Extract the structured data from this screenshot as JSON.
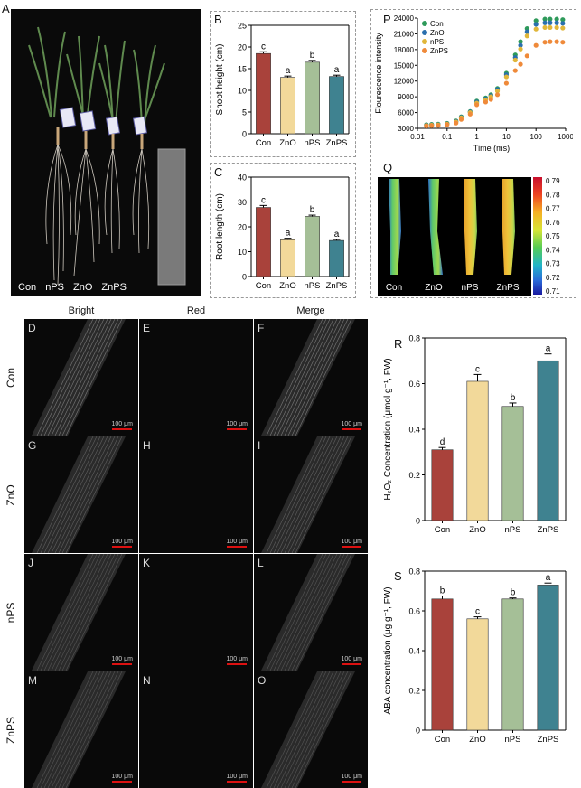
{
  "panels": {
    "A": "A",
    "B": "B",
    "C": "C",
    "D": "D",
    "E": "E",
    "F": "F",
    "G": "G",
    "H": "H",
    "I": "I",
    "J": "J",
    "K": "K",
    "L": "L",
    "M": "M",
    "N": "N",
    "O": "O",
    "P": "P",
    "Q": "Q",
    "R": "R",
    "S": "S"
  },
  "photo_a": {
    "labels": [
      "Con",
      "nPS",
      "ZnO",
      "ZnPS"
    ]
  },
  "micro": {
    "columns": [
      "Bright",
      "Red",
      "Merge"
    ],
    "rows": [
      "Con",
      "ZnO",
      "nPS",
      "ZnPS"
    ],
    "scale_bar": "100 μm",
    "panel_letters": [
      [
        "D",
        "E",
        "F"
      ],
      [
        "G",
        "H",
        "I"
      ],
      [
        "J",
        "K",
        "L"
      ],
      [
        "M",
        "N",
        "O"
      ]
    ]
  },
  "heatmap_q": {
    "labels": [
      "Con",
      "ZnO",
      "nPS",
      "ZnPS"
    ],
    "colorbar_ticks": [
      "0.79",
      "0.78",
      "0.77",
      "0.76",
      "0.75",
      "0.74",
      "0.73",
      "0.72",
      "0.71"
    ],
    "colorbar_range": [
      0.71,
      0.79
    ]
  },
  "chart_data": [
    {
      "id": "B",
      "type": "bar",
      "categories": [
        "Con",
        "ZnO",
        "nPS",
        "ZnPS"
      ],
      "values": [
        18.5,
        13.0,
        16.5,
        13.2
      ],
      "errors": [
        0.4,
        0.3,
        0.4,
        0.3
      ],
      "letters": [
        "c",
        "a",
        "b",
        "a"
      ],
      "ylabel": "Shoot height (cm)",
      "ylim": [
        0,
        25
      ],
      "yticks": [
        0,
        5,
        10,
        15,
        20,
        25
      ],
      "colors": [
        "#a9423b",
        "#f2d99a",
        "#a5bf97",
        "#3f8290"
      ]
    },
    {
      "id": "C",
      "type": "bar",
      "categories": [
        "Con",
        "ZnO",
        "nPS",
        "ZnPS"
      ],
      "values": [
        27.8,
        14.8,
        24.2,
        14.5
      ],
      "errors": [
        0.8,
        0.6,
        0.5,
        0.4
      ],
      "letters": [
        "c",
        "a",
        "b",
        "a"
      ],
      "ylabel": "Root length (cm)",
      "ylim": [
        0,
        40
      ],
      "yticks": [
        0,
        10,
        20,
        30,
        40
      ],
      "colors": [
        "#a9423b",
        "#f2d99a",
        "#a5bf97",
        "#3f8290"
      ]
    },
    {
      "id": "P",
      "type": "scatter",
      "xlabel": "Time (ms)",
      "ylabel": "Flourescence intensity",
      "xscale": "log",
      "xlim": [
        0.01,
        1000
      ],
      "xticks": [
        "0.01",
        "0.1",
        "1",
        "10",
        "100",
        "1000"
      ],
      "ylim": [
        3000,
        24000
      ],
      "yticks": [
        3000,
        6000,
        9000,
        12000,
        15000,
        18000,
        21000,
        24000
      ],
      "legend": "top-left",
      "series": [
        {
          "name": "Con",
          "color": "#2e9a5a",
          "x": [
            0.02,
            0.03,
            0.05,
            0.1,
            0.2,
            0.3,
            0.6,
            1,
            2,
            3,
            5,
            10,
            20,
            30,
            50,
            100,
            200,
            300,
            500,
            800
          ],
          "y": [
            3700,
            3750,
            3800,
            3950,
            4400,
            5200,
            6200,
            8200,
            8800,
            9400,
            10600,
            13500,
            17000,
            19500,
            22000,
            23500,
            23800,
            23800,
            23800,
            23700
          ]
        },
        {
          "name": "ZnO",
          "color": "#2a6fae",
          "x": [
            0.02,
            0.03,
            0.05,
            0.1,
            0.2,
            0.3,
            0.6,
            1,
            2,
            3,
            5,
            10,
            20,
            30,
            50,
            100,
            200,
            300,
            500,
            800
          ],
          "y": [
            3600,
            3650,
            3700,
            3850,
            4300,
            5100,
            6100,
            8000,
            8600,
            9200,
            10400,
            13200,
            16500,
            18800,
            21400,
            22800,
            23100,
            23100,
            23100,
            23000
          ]
        },
        {
          "name": "nPS",
          "color": "#e0b63a",
          "x": [
            0.02,
            0.03,
            0.05,
            0.1,
            0.2,
            0.3,
            0.6,
            1,
            2,
            3,
            5,
            10,
            20,
            30,
            50,
            100,
            200,
            300,
            500,
            800
          ],
          "y": [
            3550,
            3600,
            3650,
            3800,
            4200,
            5000,
            6000,
            7800,
            8400,
            9000,
            10100,
            12800,
            16000,
            18100,
            20600,
            21900,
            22200,
            22200,
            22200,
            22100
          ]
        },
        {
          "name": "ZnPS",
          "color": "#ef8a3a",
          "x": [
            0.02,
            0.03,
            0.05,
            0.1,
            0.2,
            0.3,
            0.6,
            1,
            2,
            3,
            5,
            10,
            20,
            30,
            50,
            100,
            200,
            300,
            500,
            800
          ],
          "y": [
            3450,
            3500,
            3550,
            3700,
            4000,
            4700,
            5700,
            7500,
            8000,
            8500,
            9400,
            11600,
            14000,
            15200,
            16800,
            18800,
            19400,
            19500,
            19500,
            19400
          ]
        }
      ]
    },
    {
      "id": "R",
      "type": "bar",
      "categories": [
        "Con",
        "ZnO",
        "nPS",
        "ZnPS"
      ],
      "values": [
        0.31,
        0.61,
        0.5,
        0.7
      ],
      "errors": [
        0.01,
        0.03,
        0.015,
        0.03
      ],
      "letters": [
        "d",
        "c",
        "b",
        "a"
      ],
      "ylabel": "H₂O₂ Concentration (μmol g⁻¹, FW)",
      "ylim": [
        0,
        0.8
      ],
      "yticks": [
        0,
        0.2,
        0.4,
        0.6,
        0.8
      ],
      "colors": [
        "#a9423b",
        "#f2d99a",
        "#a5bf97",
        "#3f8290"
      ]
    },
    {
      "id": "S",
      "type": "bar",
      "categories": [
        "Con",
        "ZnO",
        "nPS",
        "ZnPS"
      ],
      "values": [
        0.66,
        0.56,
        0.66,
        0.73
      ],
      "errors": [
        0.015,
        0.01,
        0.005,
        0.01
      ],
      "letters": [
        "b",
        "c",
        "b",
        "a"
      ],
      "ylabel": "ABA concentration (μg g⁻¹, FW)",
      "ylim": [
        0,
        0.8
      ],
      "yticks": [
        0,
        0.2,
        0.4,
        0.6,
        0.8
      ],
      "colors": [
        "#a9423b",
        "#f2d99a",
        "#a5bf97",
        "#3f8290"
      ]
    }
  ]
}
